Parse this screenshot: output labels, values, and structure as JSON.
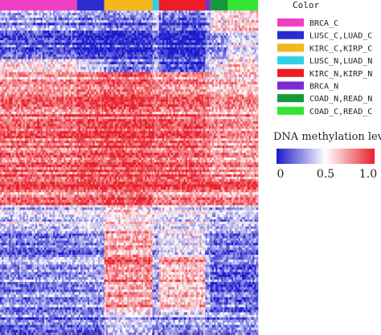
{
  "chart_data": {
    "type": "heatmap",
    "title": "",
    "xlabel": "",
    "ylabel": "",
    "color_legend": {
      "title": "Color",
      "items": [
        {
          "label": "BRCA_C",
          "color": "#ee3fc5"
        },
        {
          "label": "LUSC_C,LUAD_C",
          "color": "#2b2bd0"
        },
        {
          "label": "KIRC_C,KIRP_C",
          "color": "#f2b81c"
        },
        {
          "label": "LUSC_N,LUAD_N",
          "color": "#2fd0e8"
        },
        {
          "label": "KIRC_N,KIRP_N",
          "color": "#ee1c24"
        },
        {
          "label": "BRCA_N",
          "color": "#7b2cd4"
        },
        {
          "label": "COAD_N,READ_N",
          "color": "#149a3a"
        },
        {
          "label": "COAD_C,READ_C",
          "color": "#34e634"
        }
      ]
    },
    "sample_groups": [
      {
        "label": "BRCA_C",
        "fraction": 0.298,
        "color": "#ee3fc5"
      },
      {
        "label": "LUSC_C,LUAD_C",
        "fraction": 0.106,
        "color": "#2b2bd0"
      },
      {
        "label": "KIRC_C,KIRP_C",
        "fraction": 0.187,
        "color": "#f2b81c"
      },
      {
        "label": "LUSC_N,LUAD_N",
        "fraction": 0.025,
        "color": "#2fd0e8"
      },
      {
        "label": "KIRC_N,KIRP_N",
        "fraction": 0.18,
        "color": "#ee1c24"
      },
      {
        "label": "BRCA_N",
        "fraction": 0.019,
        "color": "#7b2cd4"
      },
      {
        "label": "COAD_N,READ_N",
        "fraction": 0.068,
        "color": "#149a3a"
      },
      {
        "label": "COAD_C,READ_C",
        "fraction": 0.117,
        "color": "#34e634"
      }
    ],
    "colorbar": {
      "title": "DNA methylation level",
      "range": [
        0,
        1
      ],
      "tick_labels": [
        "0",
        "0.5",
        "1.0"
      ],
      "low_color": "#1a1acc",
      "mid_color": "#ffffff",
      "high_color": "#e8202a"
    },
    "row_blocks": [
      {
        "fraction": 0.03,
        "values": [
          0.35,
          0.3,
          0.3,
          0.45,
          0.25,
          0.4,
          0.55,
          0.6
        ]
      },
      {
        "fraction": 0.04,
        "values": [
          0.25,
          0.2,
          0.15,
          0.35,
          0.1,
          0.3,
          0.55,
          0.6
        ]
      },
      {
        "fraction": 0.08,
        "values": [
          0.15,
          0.05,
          0.05,
          0.2,
          0.05,
          0.3,
          0.3,
          0.45
        ]
      },
      {
        "fraction": 0.04,
        "values": [
          0.55,
          0.4,
          0.2,
          0.35,
          0.1,
          0.35,
          0.45,
          0.6
        ]
      },
      {
        "fraction": 0.03,
        "values": [
          0.65,
          0.75,
          0.8,
          0.65,
          0.7,
          0.55,
          0.55,
          0.55
        ]
      },
      {
        "fraction": 0.1,
        "values": [
          0.78,
          0.85,
          0.88,
          0.8,
          0.8,
          0.75,
          0.7,
          0.7
        ]
      },
      {
        "fraction": 0.2,
        "values": [
          0.82,
          0.88,
          0.9,
          0.85,
          0.86,
          0.8,
          0.72,
          0.72
        ]
      },
      {
        "fraction": 0.04,
        "values": [
          0.9,
          0.92,
          0.92,
          0.92,
          0.92,
          0.9,
          0.88,
          0.88
        ]
      },
      {
        "fraction": 0.04,
        "values": [
          0.78,
          0.82,
          0.85,
          0.7,
          0.72,
          0.7,
          0.72,
          0.72
        ]
      },
      {
        "fraction": 0.08,
        "values": [
          0.38,
          0.42,
          0.55,
          0.42,
          0.45,
          0.4,
          0.35,
          0.35
        ]
      },
      {
        "fraction": 0.08,
        "values": [
          0.2,
          0.25,
          0.7,
          0.3,
          0.45,
          0.3,
          0.2,
          0.2
        ]
      },
      {
        "fraction": 0.1,
        "values": [
          0.3,
          0.35,
          0.8,
          0.35,
          0.7,
          0.35,
          0.2,
          0.2
        ]
      },
      {
        "fraction": 0.07,
        "values": [
          0.28,
          0.3,
          0.72,
          0.35,
          0.65,
          0.35,
          0.22,
          0.22
        ]
      },
      {
        "fraction": 0.07,
        "values": [
          0.22,
          0.22,
          0.4,
          0.3,
          0.3,
          0.3,
          0.3,
          0.3
        ]
      }
    ]
  }
}
